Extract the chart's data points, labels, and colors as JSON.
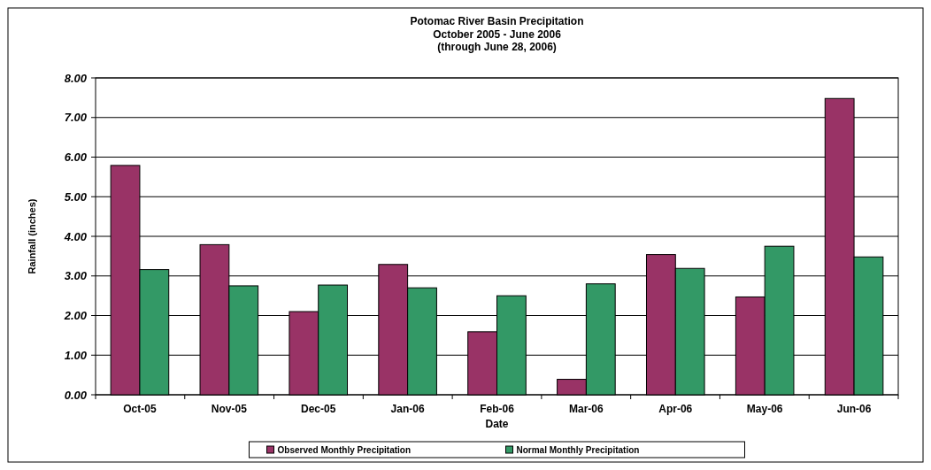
{
  "chart_data": {
    "type": "bar",
    "title": "Potomac River Basin Precipitation",
    "subtitle": "October 2005 - June 2006\n(through June 28, 2006)",
    "xlabel": "Date",
    "ylabel": "Rainfall (inches)",
    "categories": [
      "Oct-05",
      "Nov-05",
      "Dec-05",
      "Jan-06",
      "Feb-06",
      "Mar-06",
      "Apr-06",
      "May-06",
      "Jun-06"
    ],
    "series": [
      {
        "name": "Observed Monthly Precipitation",
        "color": "#993366",
        "values": [
          5.79,
          3.79,
          2.1,
          3.29,
          1.59,
          0.39,
          3.54,
          2.47,
          7.48
        ]
      },
      {
        "name": "Normal Monthly Precipitation",
        "color": "#339966",
        "values": [
          3.16,
          2.75,
          2.77,
          2.7,
          2.5,
          2.8,
          3.19,
          3.75,
          3.48
        ]
      }
    ],
    "ylim": [
      0,
      8
    ],
    "yticks": [
      {
        "value": 0,
        "label": "0.00"
      },
      {
        "value": 1,
        "label": "1.00"
      },
      {
        "value": 2,
        "label": "2.00"
      },
      {
        "value": 3,
        "label": "3.00"
      },
      {
        "value": 4,
        "label": "4.00"
      },
      {
        "value": 5,
        "label": "5.00"
      },
      {
        "value": 6,
        "label": "6.00"
      },
      {
        "value": 7,
        "label": "7.00"
      },
      {
        "value": 8,
        "label": "8.00"
      }
    ],
    "grid": "y",
    "legend": "bottom"
  }
}
